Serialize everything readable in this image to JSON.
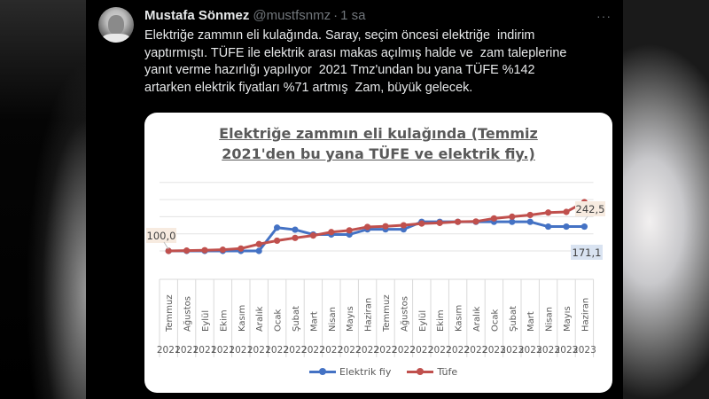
{
  "tweet": {
    "author_name": "Mustafa Sönmez",
    "handle": "@mustfsnmz",
    "separator": "·",
    "time": "1 sa",
    "more_icon": "···",
    "text": "Elektriğe zammın eli kulağında. Saray, seçim öncesi elektriğe  indirim\nyaptırmıştı. TÜFE ile elektrik arası makas açılmış halde ve  zam taleplerine\nyanıt verme hazırlığı yapılıyor  2021 Tmz'undan bu yana TÜFE %142\nartarken elektrik fiyatları %71 artmış  Zam, büyük gelecek."
  },
  "chart_card": {
    "title_line1": "Elektriğe zammın eli kulağında (Temmiz",
    "title_line2": "2021'den bu yana TÜFE ve elektrik fiy.)",
    "label_start": "100,0",
    "label_tufe_end": "242,5",
    "label_elektrik_end": "171,1",
    "legend": [
      {
        "name": "Elektrik fiy",
        "color": "#4472c4"
      },
      {
        "name": "Tüfe",
        "color": "#c0504d"
      }
    ]
  },
  "chart_data": {
    "type": "line",
    "title": "Elektriğe zammın eli kulağında (Temmiz 2021'den bu yana TÜFE ve elektrik fiy.)",
    "xlabel": "",
    "ylabel": "",
    "ylim": [
      100,
      300
    ],
    "grid": true,
    "legend_position": "bottom",
    "categories": [
      "Temmuz 2021",
      "Ağustos 2021",
      "Eylül 2021",
      "Ekim 2021",
      "Kasım 2021",
      "Aralık 2021",
      "Ocak 2022",
      "Şubat 2022",
      "Mart 2022",
      "Nisan 2022",
      "Mayıs 2022",
      "Haziran 2022",
      "Temmuz 2022",
      "Ağustos 2022",
      "Eylül 2022",
      "Ekim 2022",
      "Kasım 2022",
      "Aralık 2022",
      "Ocak 2023",
      "Şubat 2023",
      "Mart 2023",
      "Nisan 2023",
      "Mayıs 2023",
      "Haziran 2023"
    ],
    "months": [
      "Temmuz",
      "Ağustos",
      "Eylül",
      "Ekim",
      "Kasım",
      "Aralık",
      "Ocak",
      "Şubat",
      "Mart",
      "Nisan",
      "Mayıs",
      "Haziran",
      "Temmuz",
      "Ağustos",
      "Eylül",
      "Ekim",
      "Kasım",
      "Aralık",
      "Ocak",
      "Şubat",
      "Mart",
      "Nisan",
      "Mayıs",
      "Haziran"
    ],
    "years": [
      "2021",
      "2021",
      "2021",
      "2021",
      "2021",
      "2021",
      "2022",
      "2022",
      "2022",
      "2022",
      "2022",
      "2022",
      "2022",
      "2022",
      "2022",
      "2022",
      "2022",
      "2022",
      "2023",
      "2023",
      "2023",
      "2023",
      "2023",
      "2023"
    ],
    "series": [
      {
        "name": "Elektrik fiy",
        "color": "#4472c4",
        "values": [
          100.0,
          100.0,
          100.0,
          100.0,
          100.0,
          100.0,
          168.0,
          162.0,
          148.0,
          148.0,
          148.0,
          163.0,
          163.0,
          163.0,
          185.0,
          185.0,
          185.0,
          185.0,
          185.0,
          185.0,
          185.0,
          171.1,
          171.1,
          171.1
        ]
      },
      {
        "name": "Tüfe",
        "color": "#c0504d",
        "values": [
          100.0,
          101.0,
          102.0,
          103.5,
          107.0,
          120.0,
          130.0,
          138.0,
          145.0,
          155.0,
          160.0,
          170.0,
          172.0,
          175.0,
          180.0,
          182.0,
          185.0,
          186.0,
          195.0,
          200.0,
          205.0,
          212.0,
          214.0,
          242.5
        ]
      }
    ]
  }
}
